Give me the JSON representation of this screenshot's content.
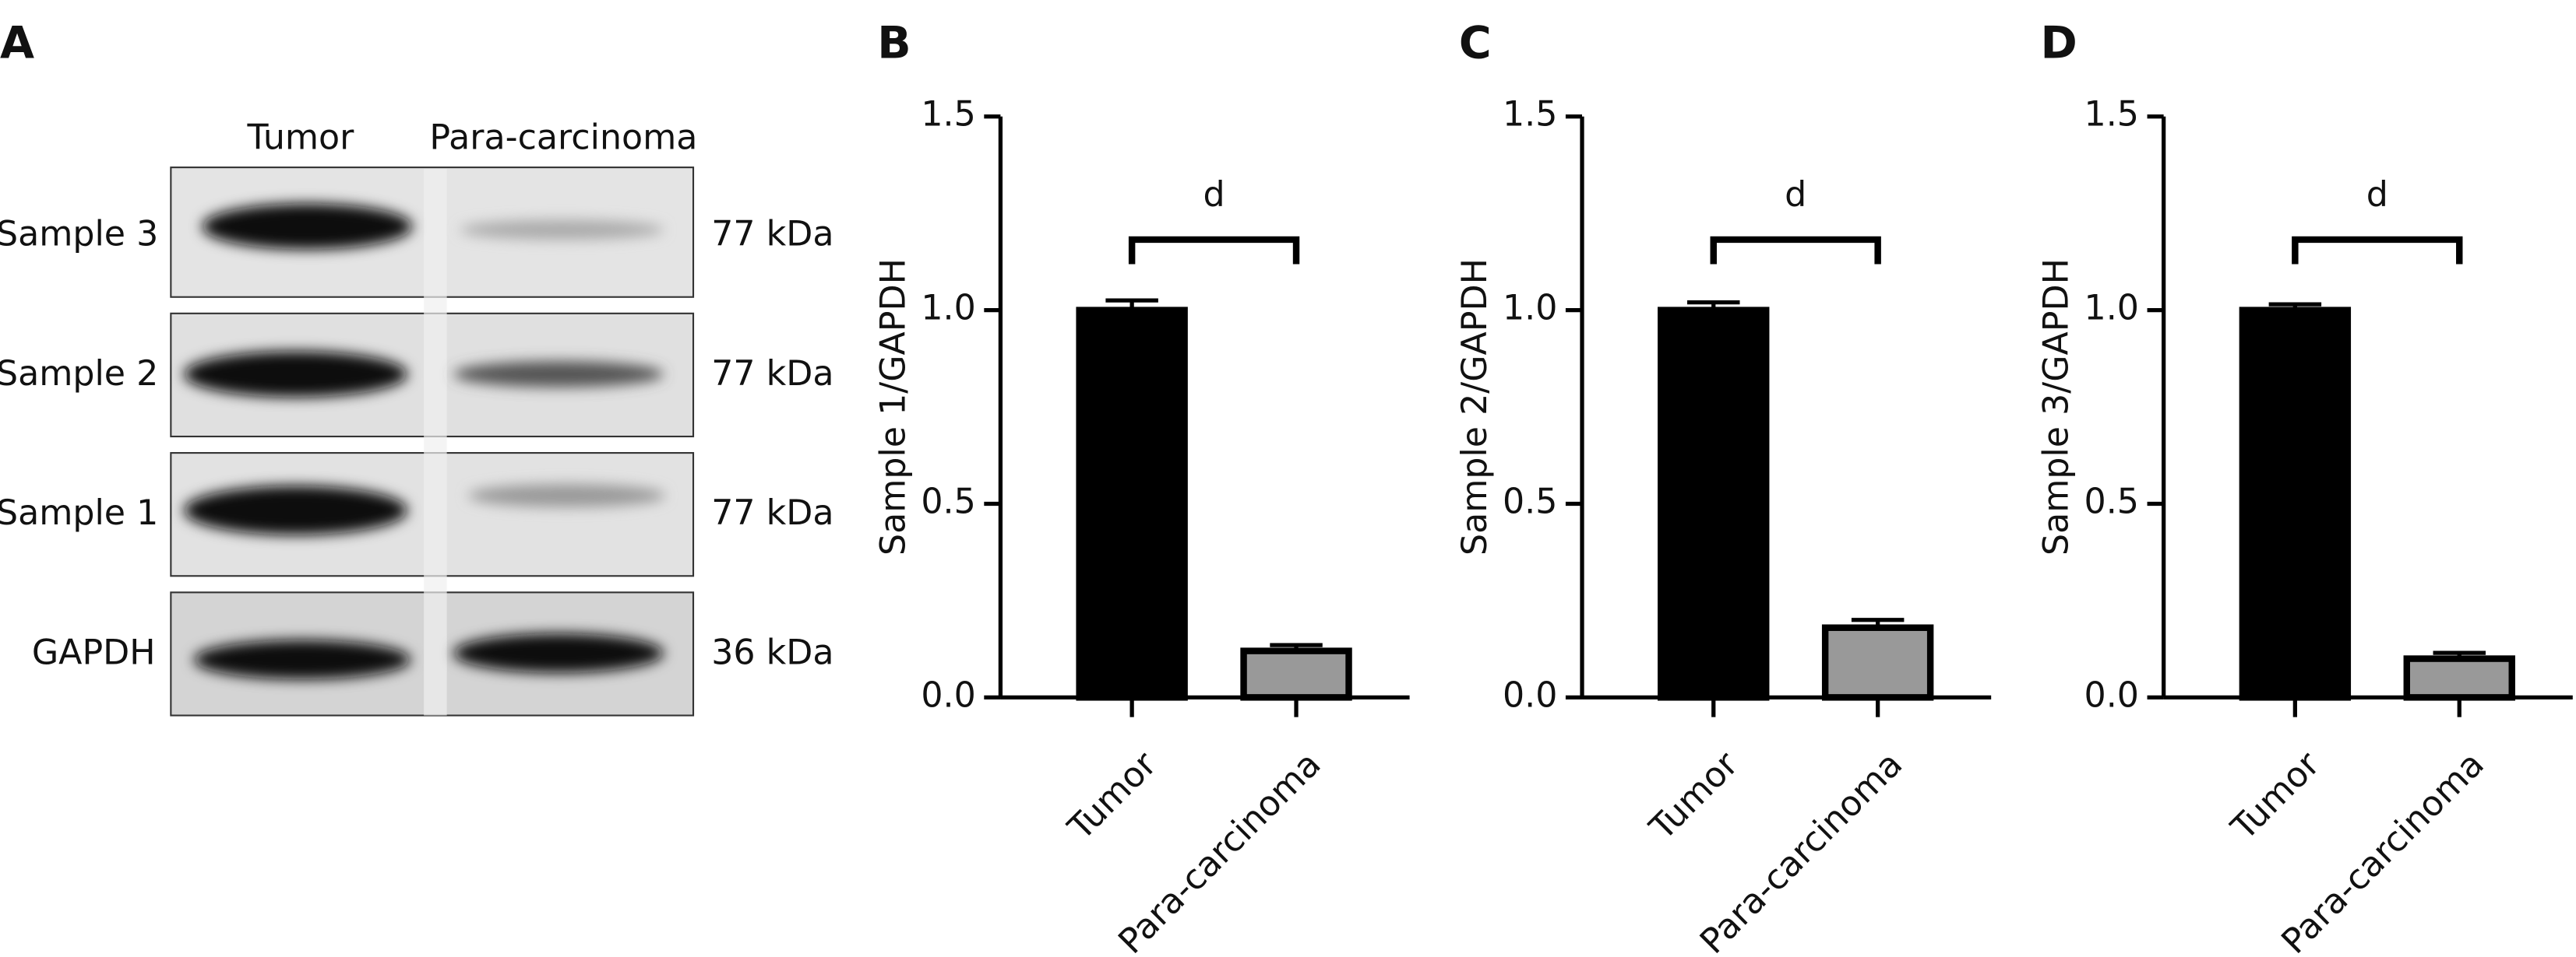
{
  "blot": {
    "label": "A",
    "columns": [
      "Tumor",
      "Para-carcinoma"
    ],
    "rows": [
      {
        "name": "Sample 3",
        "size": "77 kDa"
      },
      {
        "name": "Sample 2",
        "size": "77 kDa"
      },
      {
        "name": "Sample 1",
        "size": "77 kDa"
      },
      {
        "name": "GAPDH",
        "size": "36 kDa"
      }
    ]
  },
  "chart_data": [
    {
      "type": "bar",
      "label": "B",
      "y_label": "Sample 1/GAPDH",
      "categories": [
        "Tumor",
        "Para-carcinoma"
      ],
      "values": [
        1.0,
        0.12
      ],
      "errors": [
        0.025,
        0.015
      ],
      "colors": [
        "#000000",
        "#999999"
      ],
      "annotation": "d",
      "ylim": [
        0,
        1.5
      ],
      "yticks": [
        {
          "value": 0,
          "label": "0.0"
        },
        {
          "value": 0.5,
          "label": "0.5"
        },
        {
          "value": 1,
          "label": "1.0"
        },
        {
          "value": 1.5,
          "label": "1.5"
        }
      ]
    },
    {
      "type": "bar",
      "label": "C",
      "y_label": "Sample 2/GAPDH",
      "categories": [
        "Tumor",
        "Para-carcinoma"
      ],
      "values": [
        1.0,
        0.18
      ],
      "errors": [
        0.02,
        0.02
      ],
      "colors": [
        "#000000",
        "#999999"
      ],
      "annotation": "d",
      "ylim": [
        0,
        1.5
      ],
      "yticks": [
        {
          "value": 0,
          "label": "0.0"
        },
        {
          "value": 0.5,
          "label": "0.5"
        },
        {
          "value": 1,
          "label": "1.0"
        },
        {
          "value": 1.5,
          "label": "1.5"
        }
      ]
    },
    {
      "type": "bar",
      "label": "D",
      "y_label": "Sample 3/GAPDH",
      "categories": [
        "Tumor",
        "Para-carcinoma"
      ],
      "values": [
        1.0,
        0.1
      ],
      "errors": [
        0.015,
        0.015
      ],
      "colors": [
        "#000000",
        "#999999"
      ],
      "annotation": "d",
      "ylim": [
        0,
        1.5
      ],
      "yticks": [
        {
          "value": 0,
          "label": "0.0"
        },
        {
          "value": 0.5,
          "label": "0.5"
        },
        {
          "value": 1,
          "label": "1.0"
        },
        {
          "value": 1.5,
          "label": "1.5"
        }
      ]
    }
  ]
}
